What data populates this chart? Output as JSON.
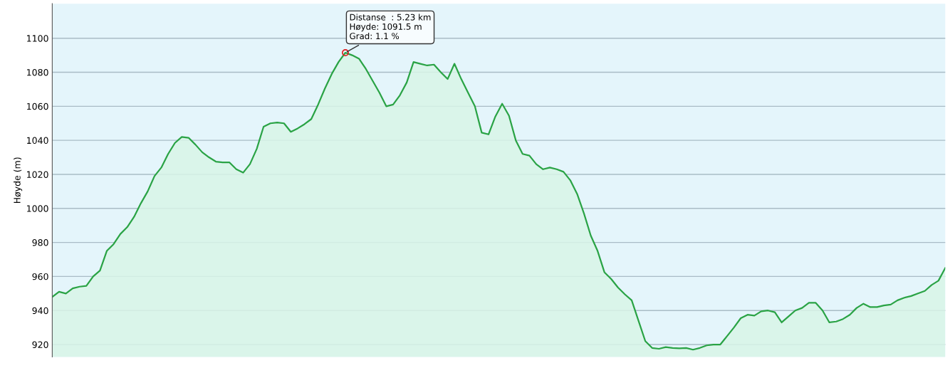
{
  "chart_data": {
    "type": "area",
    "ylabel": "Høyde (m)",
    "categories": [
      null,
      null,
      null,
      null,
      null,
      null,
      null,
      null,
      null,
      null,
      null,
      null,
      null,
      null,
      null,
      null,
      null,
      null,
      null,
      null,
      null,
      null,
      null,
      null,
      null,
      null,
      null,
      null,
      null,
      null,
      null,
      null,
      null,
      null,
      null,
      null,
      null,
      null,
      null,
      null,
      null,
      null,
      null,
      null,
      null,
      null,
      null,
      null,
      null,
      null,
      null,
      null,
      null,
      null,
      null,
      null,
      null,
      null,
      null,
      null,
      null,
      null,
      null,
      null,
      null,
      null,
      null,
      null,
      null,
      null,
      null,
      null,
      null,
      null,
      null,
      null,
      null,
      null,
      null,
      null,
      null,
      null,
      null,
      null,
      null,
      null,
      null,
      null,
      null,
      null,
      null,
      null,
      null,
      null,
      null,
      null,
      null,
      null,
      null,
      null,
      null,
      null,
      null,
      null,
      null,
      null,
      null,
      null,
      null,
      null,
      null,
      null,
      null,
      null,
      null,
      null,
      null,
      null,
      null,
      null,
      null,
      null,
      null,
      null,
      null,
      null,
      null,
      null,
      null,
      null,
      null,
      null
    ],
    "series": [
      {
        "color": "#2aa345",
        "values": [
          948,
          951,
          950,
          953,
          954,
          954.5,
          960,
          963.5,
          975,
          979,
          985,
          989,
          995,
          1003,
          1010,
          1019,
          1024,
          1032,
          1038.5,
          1042,
          1041.5,
          1037.5,
          1033,
          1030,
          1027.5,
          1027,
          1027,
          1023,
          1021,
          1026,
          1035,
          1048,
          1050,
          1050.5,
          1050,
          1045,
          1047,
          1049.5,
          1052.5,
          1061,
          1070.5,
          1079,
          1086,
          1091.5,
          1090,
          1088,
          1082,
          1075,
          1068,
          1060,
          1061,
          1066.5,
          1074,
          1086,
          1085,
          1084,
          1084.5,
          1080,
          1076,
          1085,
          1076,
          1068,
          1060,
          1044.5,
          1043.5,
          1054,
          1061.5,
          1054.5,
          1040,
          1032,
          1031,
          1026,
          1023,
          1024,
          1023,
          1021.5,
          1016.5,
          1008.5,
          997,
          984,
          975,
          962.5,
          958.5,
          953.5,
          949.5,
          946,
          934,
          922,
          918,
          917.5,
          918.5,
          918,
          917.8,
          918,
          917,
          918,
          919.5,
          920,
          920,
          925,
          930,
          935.5,
          937.5,
          937,
          939.5,
          940,
          939,
          933,
          936.5,
          940,
          941.5,
          944.5,
          944.5,
          940,
          933,
          933.5,
          935,
          937.5,
          941.5,
          944,
          942,
          942,
          943,
          943.5,
          946,
          947.5,
          948.5,
          950,
          951.5,
          955,
          957.5,
          965
        ]
      }
    ],
    "ylim": [
      912.7,
      1120.3
    ],
    "yticks": [
      920,
      940,
      960,
      980,
      1000,
      1020,
      1040,
      1060,
      1080,
      1100
    ],
    "grid": "y",
    "tick_labels": "y",
    "annotations": [
      "Distanse  : 5.23 km\nHøyde: 1091.5 m\nGrad: 1.1 %"
    ]
  }
}
